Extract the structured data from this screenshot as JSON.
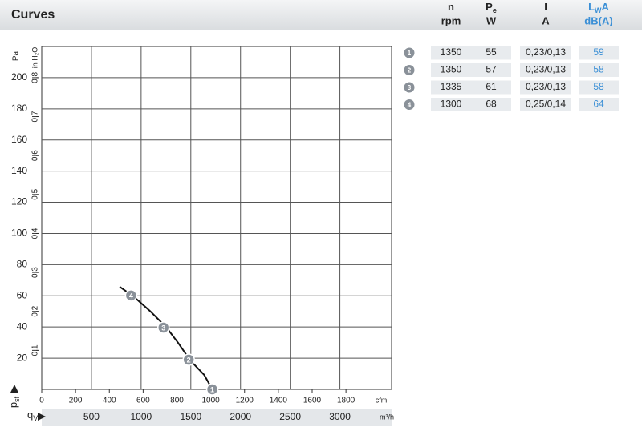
{
  "chart_data": {
    "type": "line",
    "title": "Curves",
    "x_label": "m³/h",
    "x2_label": "cfm",
    "y_label": "Pa",
    "y2_label": "in H₂O",
    "x_symbol": [
      "q",
      "V"
    ],
    "y_symbol": [
      "p",
      "sf"
    ],
    "xlim": [
      0,
      3520
    ],
    "xticks": [
      500,
      1000,
      1500,
      2000,
      2500,
      3000
    ],
    "x2lim": [
      0,
      2070
    ],
    "x2ticks": [
      0,
      200,
      400,
      600,
      800,
      1000,
      1200,
      1400,
      1600,
      1800
    ],
    "ylim": [
      0,
      220
    ],
    "yticks": [
      20,
      40,
      60,
      80,
      100,
      120,
      140,
      160,
      180,
      200
    ],
    "y2lim": [
      0,
      0.88
    ],
    "y2ticks": [
      {
        "value": 0.1,
        "label": "0,1"
      },
      {
        "value": 0.2,
        "label": "0,2"
      },
      {
        "value": 0.3,
        "label": "0,3"
      },
      {
        "value": 0.4,
        "label": "0,4"
      },
      {
        "value": 0.5,
        "label": "0,5"
      },
      {
        "value": 0.6,
        "label": "0,6"
      },
      {
        "value": 0.7,
        "label": "0,7"
      },
      {
        "value": 0.8,
        "label": "0,8"
      }
    ],
    "grid": true,
    "x": [
      784,
      923,
      1087,
      1250,
      1373,
      1495,
      1634,
      1716
    ],
    "values": [
      65.8,
      59.6,
      50.4,
      40.1,
      29.8,
      18.5,
      9.3,
      0
    ],
    "color": "#111111",
    "operating_points": {
      "labels": [
        "4",
        "3",
        "2",
        "1"
      ],
      "x": [
        899,
        1225,
        1479,
        1716
      ],
      "y": [
        60.2,
        39.6,
        19.0,
        0
      ],
      "color": "#8a9199"
    }
  },
  "table": {
    "headers": [
      [
        "n",
        "",
        "rpm"
      ],
      [
        "P",
        "e",
        "W"
      ],
      [
        "I",
        "",
        "A"
      ],
      [
        "L",
        "W",
        "A",
        "dB(A)"
      ]
    ],
    "rows": [
      [
        "1",
        "1350",
        "55",
        "0,23/0,13",
        "59"
      ],
      [
        "2",
        "1350",
        "57",
        "0,23/0,13",
        "58"
      ],
      [
        "3",
        "1335",
        "61",
        "0,23/0,13",
        "58"
      ],
      [
        "4",
        "1300",
        "68",
        "0,25/0,14",
        "64"
      ]
    ]
  }
}
